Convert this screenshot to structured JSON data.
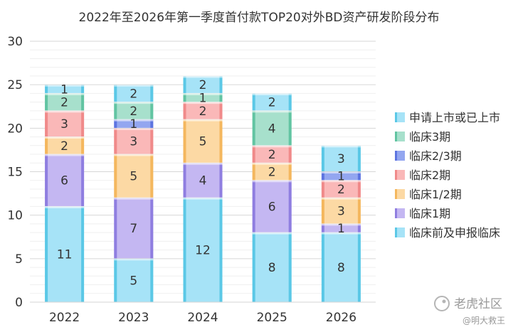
{
  "chart_data": {
    "type": "bar",
    "stacked": true,
    "title": "2022年至2026年第一季度首付款TOP20对外BD资产研发阶段分布",
    "categories": [
      "2022",
      "2023",
      "2024",
      "2025",
      "2026"
    ],
    "ylim": [
      0,
      30
    ],
    "yticks": [
      0,
      5,
      10,
      15,
      20,
      25,
      30
    ],
    "grid": true,
    "legend_position": "right",
    "series": [
      {
        "name": "临床前及申报临床",
        "values": [
          11,
          5,
          12,
          8,
          8
        ],
        "color": "#a6e3f7",
        "edge": "#5bc8e6"
      },
      {
        "name": "临床1期",
        "values": [
          6,
          7,
          4,
          6,
          1
        ],
        "color": "#c4b7f2",
        "edge": "#8f7ee0"
      },
      {
        "name": "临床1/2期",
        "values": [
          2,
          5,
          5,
          2,
          3
        ],
        "color": "#fcd9a4",
        "edge": "#f4b75e"
      },
      {
        "name": "临床2期",
        "values": [
          3,
          3,
          2,
          2,
          2
        ],
        "color": "#fab8b8",
        "edge": "#f08a8a"
      },
      {
        "name": "临床2/3期",
        "values": [
          0,
          1,
          0,
          0,
          1
        ],
        "color": "#93a6f0",
        "edge": "#5d74e0"
      },
      {
        "name": "临床3期",
        "values": [
          2,
          2,
          1,
          4,
          0
        ],
        "color": "#a7e0cc",
        "edge": "#62c4a2"
      },
      {
        "name": "申请上市或已上市",
        "values": [
          1,
          2,
          2,
          2,
          3
        ],
        "color": "#a6e3f7",
        "edge": "#5bc8e6"
      }
    ]
  },
  "watermark": {
    "brand": "老虎社区",
    "user": "@明大救王"
  }
}
